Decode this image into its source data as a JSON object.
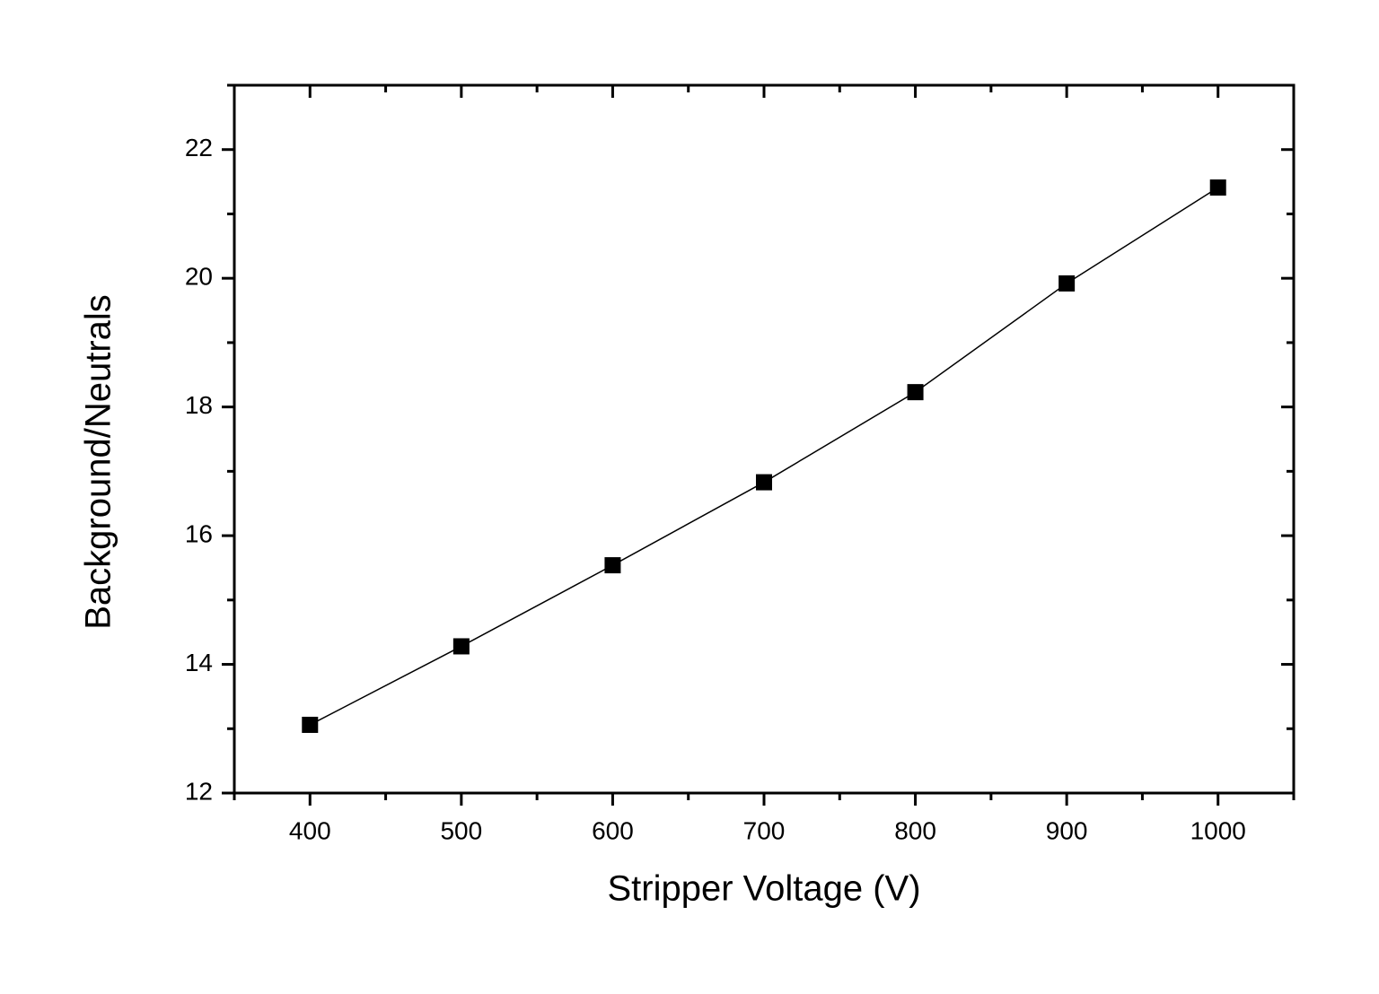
{
  "chart_data": {
    "type": "line",
    "x_label": "Stripper Voltage (V)",
    "y_label": "Background/Neutrals",
    "x": [
      400,
      500,
      600,
      700,
      800,
      900,
      1000
    ],
    "series": [
      {
        "name": "Background/Neutrals",
        "color": "#000000",
        "marker": "square",
        "values": [
          13.06,
          14.28,
          15.54,
          16.83,
          18.23,
          19.92,
          21.41
        ]
      }
    ],
    "xlim": [
      350,
      1050
    ],
    "xticks": [
      400,
      500,
      600,
      700,
      800,
      900,
      1000
    ],
    "xminorticks": [
      350,
      450,
      550,
      650,
      750,
      850,
      950,
      1050
    ],
    "ylim": [
      12,
      23
    ],
    "yticks": [
      12,
      14,
      16,
      18,
      20,
      22
    ],
    "yminorticks": [
      13,
      15,
      17,
      19,
      21,
      23
    ],
    "grid": false
  }
}
